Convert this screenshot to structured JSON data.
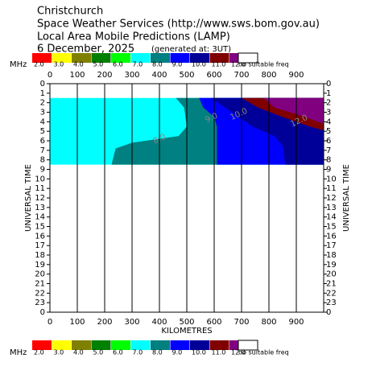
{
  "chart_data": {
    "type": "contour",
    "title_lines": [
      "Christchurch",
      "Space Weather Services (http://www.sws.bom.gov.au)",
      "Local Area Mobile Predictions (LAMP)",
      "6 December, 2025"
    ],
    "generated": "(generated at: 3UT)",
    "legend_unit": "MHz",
    "legend": [
      {
        "label": "2.0",
        "color": "#ff0000"
      },
      {
        "label": "3.0",
        "color": "#ffff00"
      },
      {
        "label": "4.0",
        "color": "#808000"
      },
      {
        "label": "5.0",
        "color": "#008000"
      },
      {
        "label": "6.0",
        "color": "#00ff00"
      },
      {
        "label": "7.0",
        "color": "#00ffff"
      },
      {
        "label": "8.0",
        "color": "#008080"
      },
      {
        "label": "9.0",
        "color": "#0000ff"
      },
      {
        "label": "10.0",
        "color": "#000099"
      },
      {
        "label": "11.0",
        "color": "#800000"
      },
      {
        "label": "12.0",
        "color": "#800080"
      },
      {
        "label": "no suitable freq",
        "color": "#ffffff"
      }
    ],
    "xlabel": "KILOMETRES",
    "ylabel": "UNIVERSAL TIME",
    "xlim": [
      0,
      1000
    ],
    "xticks": [
      0,
      100,
      200,
      300,
      400,
      500,
      600,
      700,
      800,
      900
    ],
    "ylim": [
      0,
      24
    ],
    "yticks": [
      0,
      1,
      2,
      3,
      4,
      5,
      6,
      7,
      8,
      9,
      10,
      11,
      12,
      13,
      14,
      15,
      16,
      17,
      18,
      19,
      20,
      21,
      22,
      23,
      {
        "value": 24,
        "label": "0"
      }
    ],
    "regions": [
      {
        "level": 7,
        "color": "#00ffff",
        "points": [
          [
            0,
            1.5
          ],
          [
            1000,
            1.5
          ],
          [
            1000,
            8.5
          ],
          [
            0,
            8.5
          ]
        ]
      },
      {
        "level": 8,
        "color": "#008080",
        "points": [
          [
            460,
            1.5
          ],
          [
            1000,
            1.5
          ],
          [
            1000,
            8.5
          ],
          [
            225,
            8.5
          ],
          [
            240,
            6.8
          ],
          [
            300,
            6.2
          ],
          [
            470,
            5.5
          ],
          [
            500,
            4.5
          ],
          [
            490,
            2.5
          ]
        ]
      },
      {
        "level": 9,
        "color": "#0000ff",
        "points": [
          [
            545,
            1.5
          ],
          [
            1000,
            1.5
          ],
          [
            1000,
            8.5
          ],
          [
            610,
            8.5
          ],
          [
            610,
            4.5
          ],
          [
            600,
            3.5
          ],
          [
            560,
            2.5
          ]
        ]
      },
      {
        "level": 10,
        "color": "#000099",
        "points": [
          [
            590,
            1.5
          ],
          [
            1000,
            1.5
          ],
          [
            1000,
            8.5
          ],
          [
            860,
            8.5
          ],
          [
            850,
            6.5
          ],
          [
            820,
            5.5
          ],
          [
            740,
            4.5
          ],
          [
            690,
            3.5
          ],
          [
            640,
            2.5
          ]
        ]
      },
      {
        "level": 11,
        "color": "#800000",
        "points": [
          [
            700,
            1.5
          ],
          [
            1000,
            1.5
          ],
          [
            1000,
            4.9
          ],
          [
            950,
            4.5
          ],
          [
            850,
            3.5
          ],
          [
            760,
            2.5
          ]
        ]
      },
      {
        "level": 12,
        "color": "#800080",
        "points": [
          [
            780,
            1.5
          ],
          [
            1000,
            1.5
          ],
          [
            1000,
            4.2
          ],
          [
            900,
            3.2
          ],
          [
            820,
            2.5
          ]
        ]
      }
    ],
    "contour_labels": [
      {
        "text": "8.0",
        "at": [
          400,
          5.8
        ]
      },
      {
        "text": "9.0",
        "at": [
          590,
          3.6
        ]
      },
      {
        "text": "10.0",
        "at": [
          690,
          3.2
        ]
      },
      {
        "text": "12.0",
        "at": [
          910,
          3.9
        ]
      }
    ],
    "grid": true
  }
}
